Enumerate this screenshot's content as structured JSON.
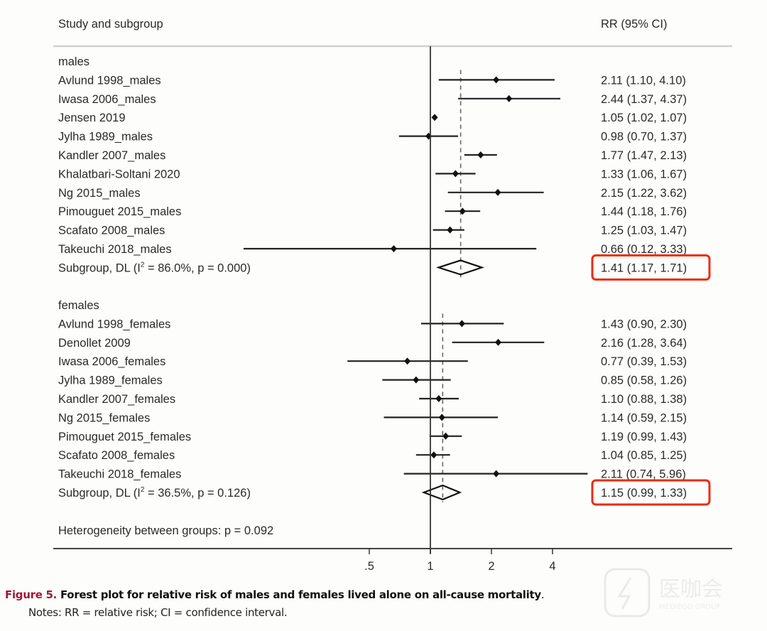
{
  "chart_data": {
    "type": "forest",
    "header": {
      "study_col": "Study and subgroup",
      "effect_col": "RR (95% CI)"
    },
    "x_scale": "log",
    "x_ticks": [
      {
        "value": 0.5,
        "label": ".5"
      },
      {
        "value": 1,
        "label": "1"
      },
      {
        "value": 2,
        "label": "2"
      },
      {
        "value": 4,
        "label": "4"
      }
    ],
    "null_line": 1,
    "groups": [
      {
        "name": "males",
        "studies": [
          {
            "label": "Avlund 1998_males",
            "rr": 2.11,
            "lo": 1.1,
            "hi": 4.1,
            "text": "2.11 (1.10, 4.10)"
          },
          {
            "label": "Iwasa 2006_males",
            "rr": 2.44,
            "lo": 1.37,
            "hi": 4.37,
            "text": "2.44 (1.37, 4.37)"
          },
          {
            "label": "Jensen 2019",
            "rr": 1.05,
            "lo": 1.02,
            "hi": 1.07,
            "text": "1.05 (1.02, 1.07)"
          },
          {
            "label": "Jylha 1989_males",
            "rr": 0.98,
            "lo": 0.7,
            "hi": 1.37,
            "text": "0.98 (0.70, 1.37)"
          },
          {
            "label": "Kandler 2007_males",
            "rr": 1.77,
            "lo": 1.47,
            "hi": 2.13,
            "text": "1.77 (1.47, 2.13)"
          },
          {
            "label": "Khalatbari-Soltani 2020",
            "rr": 1.33,
            "lo": 1.06,
            "hi": 1.67,
            "text": "1.33 (1.06, 1.67)"
          },
          {
            "label": "Ng 2015_males",
            "rr": 2.15,
            "lo": 1.22,
            "hi": 3.62,
            "text": "2.15 (1.22, 3.62)"
          },
          {
            "label": "Pimouguet 2015_males",
            "rr": 1.44,
            "lo": 1.18,
            "hi": 1.76,
            "text": "1.44 (1.18, 1.76)"
          },
          {
            "label": "Scafato 2008_males",
            "rr": 1.25,
            "lo": 1.03,
            "hi": 1.47,
            "text": "1.25 (1.03, 1.47)"
          },
          {
            "label": "Takeuchi 2018_males",
            "rr": 0.66,
            "lo": 0.12,
            "hi": 3.33,
            "text": "0.66 (0.12, 3.33)"
          }
        ],
        "subgroup": {
          "label_prefix": "Subgroup, DL (I",
          "label_sup": "2",
          "label_suffix": " = 86.0%, p = 0.000)",
          "rr": 1.41,
          "lo": 1.17,
          "hi": 1.71,
          "text": "1.41 (1.17, 1.71)",
          "highlighted": true
        }
      },
      {
        "name": "females",
        "studies": [
          {
            "label": "Avlund 1998_females",
            "rr": 1.43,
            "lo": 0.9,
            "hi": 2.3,
            "text": "1.43 (0.90, 2.30)"
          },
          {
            "label": "Denollet 2009",
            "rr": 2.16,
            "lo": 1.28,
            "hi": 3.64,
            "text": "2.16 (1.28, 3.64)"
          },
          {
            "label": "Iwasa 2006_females",
            "rr": 0.77,
            "lo": 0.39,
            "hi": 1.53,
            "text": "0.77 (0.39, 1.53)"
          },
          {
            "label": "Jylha 1989_females",
            "rr": 0.85,
            "lo": 0.58,
            "hi": 1.26,
            "text": "0.85 (0.58, 1.26)"
          },
          {
            "label": "Kandler 2007_females",
            "rr": 1.1,
            "lo": 0.88,
            "hi": 1.38,
            "text": "1.10 (0.88, 1.38)"
          },
          {
            "label": "Ng 2015_females",
            "rr": 1.14,
            "lo": 0.59,
            "hi": 2.15,
            "text": "1.14 (0.59, 2.15)"
          },
          {
            "label": "Pimouguet 2015_females",
            "rr": 1.19,
            "lo": 0.99,
            "hi": 1.43,
            "text": "1.19 (0.99, 1.43)"
          },
          {
            "label": "Scafato 2008_females",
            "rr": 1.04,
            "lo": 0.85,
            "hi": 1.25,
            "text": "1.04 (0.85, 1.25)"
          },
          {
            "label": "Takeuchi 2018_females",
            "rr": 2.11,
            "lo": 0.74,
            "hi": 5.96,
            "text": "2.11 (0.74, 5.96)"
          }
        ],
        "subgroup": {
          "label_prefix": "Subgroup, DL (I",
          "label_sup": "2",
          "label_suffix": " = 36.5%, p = 0.126)",
          "rr": 1.15,
          "lo": 0.99,
          "hi": 1.33,
          "text": "1.15 (0.99, 1.33)",
          "highlighted": true
        }
      }
    ],
    "heterogeneity": "Heterogeneity between groups: p = 0.092",
    "highlight_color": "#ee2a12",
    "title": "Figure 5. Forest plot for relative risk of males and females lived alone on all-cause mortality.",
    "xlabel": "",
    "ylabel": ""
  },
  "caption": {
    "figure_label": "Figure 5.",
    "text": " Forest plot for relative risk of males and females lived alone on all-cause mortality",
    "end": ".",
    "notes": "Notes: RR = relative risk; CI = confidence interval."
  },
  "watermark": {
    "text": "医咖会",
    "subtext": "MEDIEGO GROUP"
  }
}
